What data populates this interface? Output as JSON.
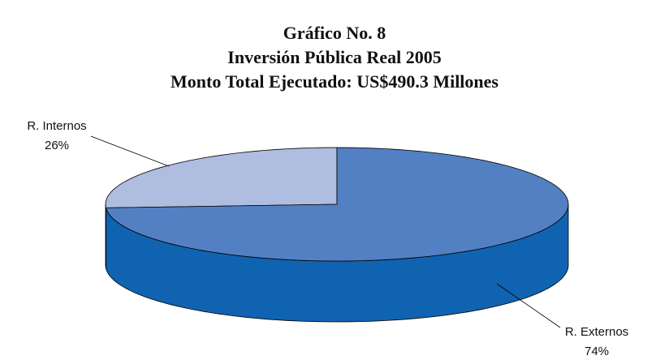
{
  "chart_data": {
    "type": "pie",
    "title": [
      "Gráfico No. 8",
      "Inversión Pública Real 2005",
      "Monto Total Ejecutado: US$490.3 Millones"
    ],
    "categories": [
      "R. Internos",
      "R. Externos"
    ],
    "values": [
      26,
      74
    ],
    "value_labels": [
      "26%",
      "74%"
    ],
    "colors": [
      "#aebde0",
      "#5380c2"
    ],
    "side_colors": [
      "#8696c8",
      "#1063b0"
    ]
  }
}
